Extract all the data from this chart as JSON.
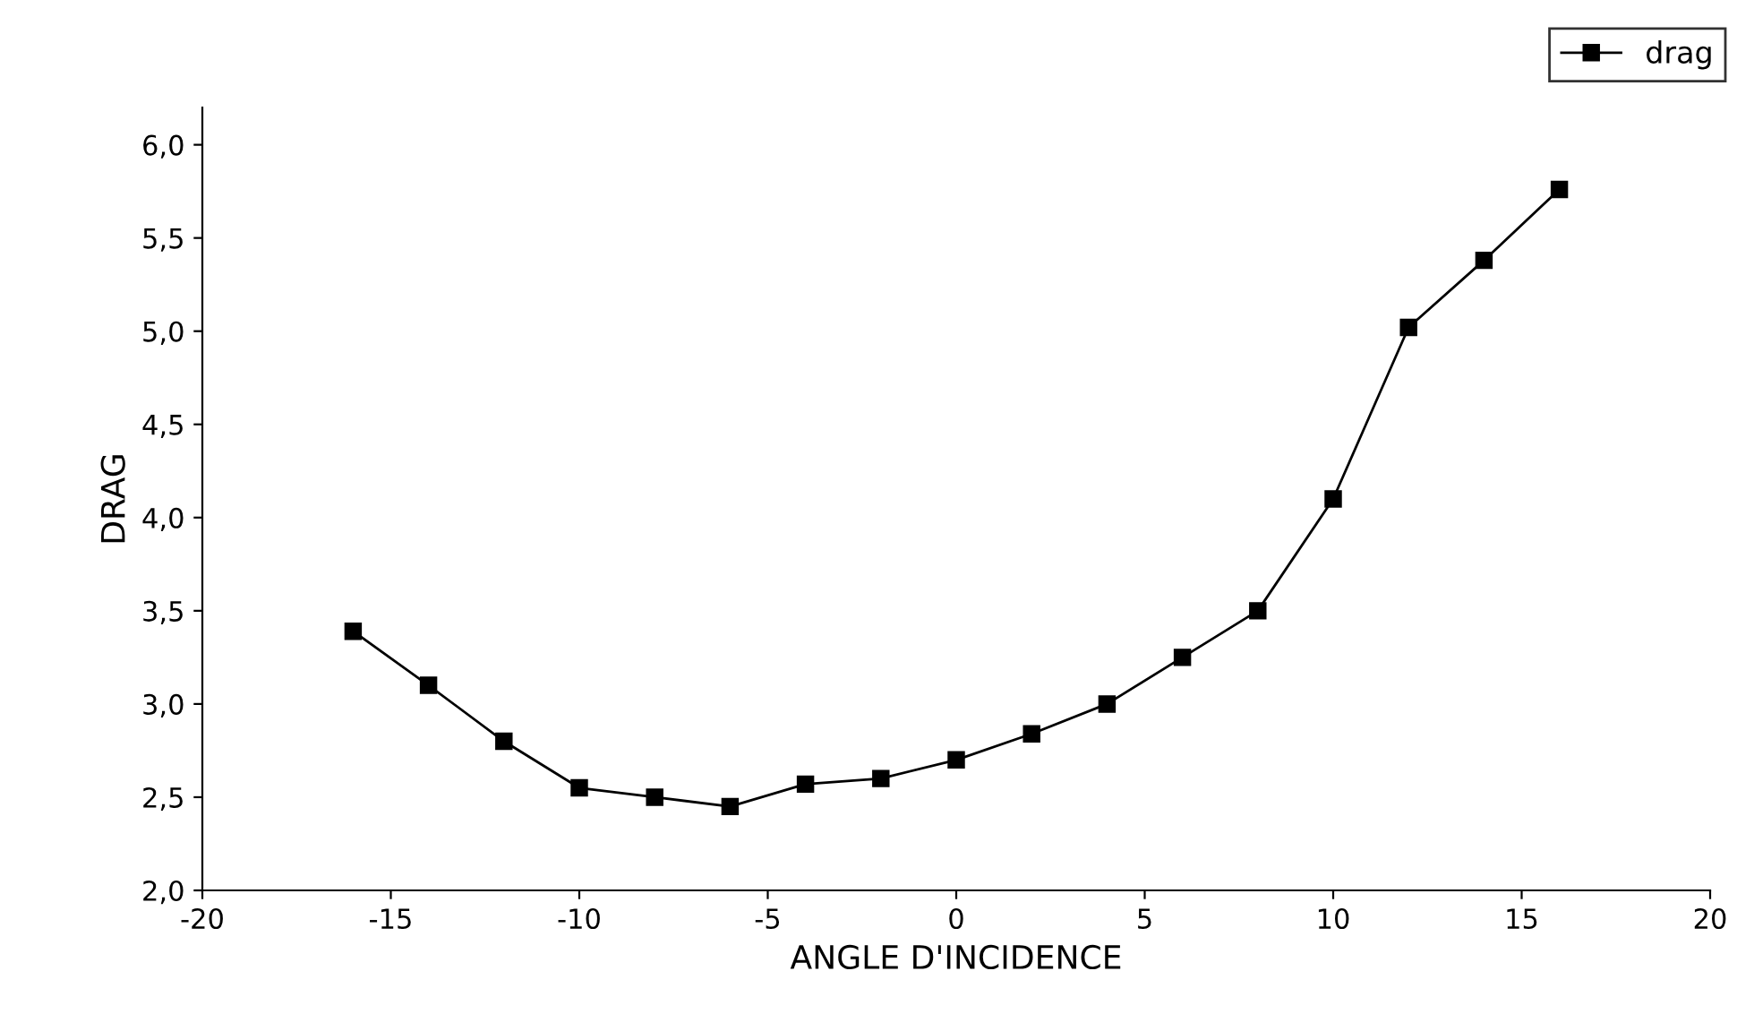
{
  "chart_data": {
    "type": "line",
    "xlabel": "ANGLE D'INCIDENCE",
    "ylabel": "DRAG",
    "x": [
      -16,
      -14,
      -12,
      -10,
      -8,
      -6,
      -4,
      -2,
      0,
      2,
      4,
      6,
      8,
      10,
      12,
      14,
      16
    ],
    "series": [
      {
        "name": "drag",
        "color": "#000000",
        "values": [
          3.39,
          3.1,
          2.8,
          2.55,
          2.5,
          2.45,
          2.57,
          2.6,
          2.7,
          2.84,
          3.0,
          3.25,
          3.5,
          4.1,
          5.02,
          5.38,
          5.76
        ]
      }
    ],
    "xlim": [
      -20,
      20
    ],
    "xticks": [
      -20,
      -15,
      -10,
      -5,
      0,
      5,
      10,
      15,
      20
    ],
    "ylim": [
      2.0,
      6.2
    ],
    "yticks": [
      {
        "value": 2.0,
        "label": "2,0"
      },
      {
        "value": 2.5,
        "label": "2,5"
      },
      {
        "value": 3.0,
        "label": "3,0"
      },
      {
        "value": 3.5,
        "label": "3,5"
      },
      {
        "value": 4.0,
        "label": "4,0"
      },
      {
        "value": 4.5,
        "label": "4,5"
      },
      {
        "value": 5.0,
        "label": "5,0"
      },
      {
        "value": 5.5,
        "label": "5,5"
      },
      {
        "value": 6.0,
        "label": "6,0"
      }
    ],
    "marker": "square",
    "line_style": "solid",
    "legend": "top right",
    "grid": false
  }
}
